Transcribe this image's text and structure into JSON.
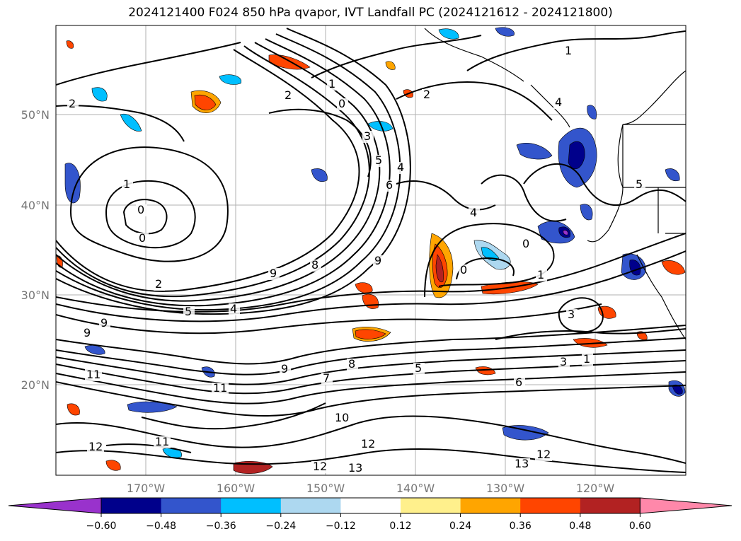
{
  "title": "2024121400 F024 850 hPa qvapor, IVT Landfall PC (2024121612 - 2024121800)",
  "lat_labels": [
    "50°N",
    "40°N",
    "30°N",
    "20°N"
  ],
  "lon_labels": [
    "170°W",
    "160°W",
    "150°W",
    "140°W",
    "130°W",
    "120°W"
  ],
  "colorbar": {
    "colors": [
      "#9932cc",
      "#00008b",
      "#3355cc",
      "#00bfff",
      "#add8f0",
      "#ffffff",
      "#fff08c",
      "#ffa500",
      "#ff4500",
      "#b22222",
      "#ff88aa"
    ],
    "tick_labels": [
      "−0.60",
      "−0.48",
      "−0.36",
      "−0.24",
      "−0.12",
      "0.12",
      "0.24",
      "0.36",
      "0.48",
      "0.60"
    ]
  },
  "contour_labels": [
    {
      "text": "1"
    },
    {
      "text": "2"
    },
    {
      "text": "0"
    },
    {
      "text": "3"
    },
    {
      "text": "5"
    },
    {
      "text": "4"
    },
    {
      "text": "6"
    },
    {
      "text": "1"
    },
    {
      "text": "0"
    },
    {
      "text": "0"
    },
    {
      "text": "2"
    },
    {
      "text": "9"
    },
    {
      "text": "8"
    },
    {
      "text": "9"
    },
    {
      "text": "4"
    },
    {
      "text": "0"
    },
    {
      "text": "0"
    },
    {
      "text": "1"
    },
    {
      "text": "3"
    },
    {
      "text": "5"
    },
    {
      "text": "4"
    },
    {
      "text": "9"
    },
    {
      "text": "11"
    },
    {
      "text": "9"
    },
    {
      "text": "11"
    },
    {
      "text": "9"
    },
    {
      "text": "7"
    },
    {
      "text": "8"
    },
    {
      "text": "5"
    },
    {
      "text": "6"
    },
    {
      "text": "3"
    },
    {
      "text": "1"
    },
    {
      "text": "10"
    },
    {
      "text": "12"
    },
    {
      "text": "11"
    },
    {
      "text": "12"
    },
    {
      "text": "13"
    },
    {
      "text": "12"
    },
    {
      "text": "13"
    },
    {
      "text": "12"
    },
    {
      "text": "2"
    },
    {
      "text": "4"
    },
    {
      "text": "5"
    },
    {
      "text": "2"
    },
    {
      "text": "1"
    }
  ]
}
